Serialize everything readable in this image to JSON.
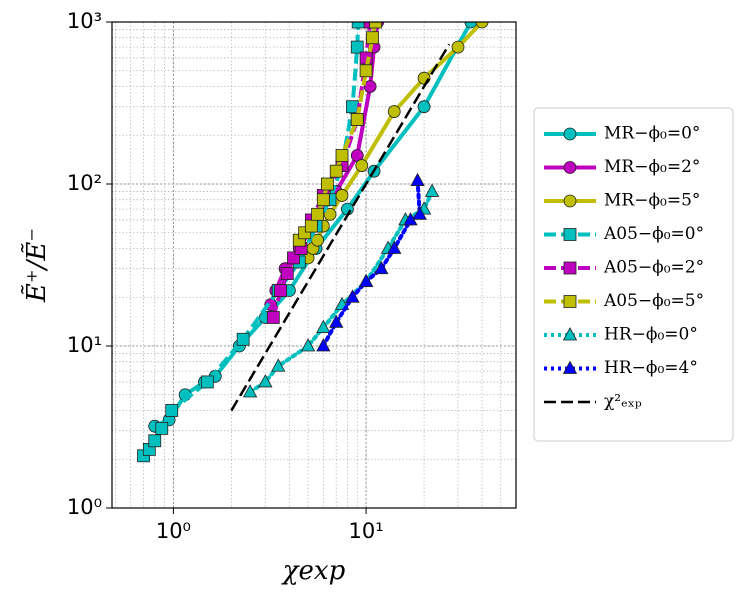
{
  "chart_data": {
    "type": "line",
    "xlabel": "χexp",
    "ylabel": "Ẽ⁺/Ẽ⁻",
    "xscale": "log",
    "yscale": "log",
    "grid": true,
    "legend": "right",
    "xlim": [
      0.48,
      60
    ],
    "ylim": [
      1,
      1000
    ],
    "xticks": [
      {
        "value": 1,
        "label": "10⁰"
      },
      {
        "value": 10,
        "label": "10¹"
      }
    ],
    "yticks": [
      {
        "value": 1,
        "label": "10⁰"
      },
      {
        "value": 10,
        "label": "10¹"
      },
      {
        "value": 100,
        "label": "10²"
      },
      {
        "value": 1000,
        "label": "10³"
      }
    ],
    "series": [
      {
        "name": "MR−ϕ₀=0°",
        "color": "#00bfbf",
        "line": "solid",
        "marker": "o",
        "x": [
          0.8,
          0.95,
          1.15,
          1.45,
          1.65,
          2.2,
          3.0,
          4.0,
          5.5,
          8,
          11,
          20,
          35
        ],
        "values": [
          3.2,
          3.5,
          5,
          6,
          6.5,
          10,
          15,
          22,
          40,
          70,
          120,
          300,
          1000
        ]
      },
      {
        "name": "MR−ϕ₀=2°",
        "color": "#bf00bf",
        "line": "solid",
        "marker": "o",
        "x": [
          3.2,
          3.4,
          3.8,
          4.5,
          5.5,
          7,
          9,
          10.5,
          11,
          11.5
        ],
        "values": [
          18,
          22,
          30,
          40,
          60,
          90,
          150,
          400,
          700,
          1000
        ]
      },
      {
        "name": "MR−ϕ₀=5°",
        "color": "#bfbf00",
        "line": "solid",
        "marker": "o",
        "x": [
          5,
          5.3,
          5.6,
          6,
          6.5,
          7.5,
          9.5,
          14,
          20,
          30,
          40
        ],
        "values": [
          35,
          40,
          45,
          55,
          65,
          85,
          130,
          280,
          450,
          700,
          1000
        ]
      },
      {
        "name": "A05−ϕ₀=0°",
        "color": "#00bfbf",
        "line": "dashed",
        "marker": "s",
        "x": [
          0.7,
          0.75,
          0.8,
          0.87,
          0.98,
          1.5,
          2.3,
          3.5,
          4.5,
          5.5,
          6.5,
          7.5,
          8.5,
          9.0,
          9.1
        ],
        "values": [
          2.1,
          2.3,
          2.6,
          3.1,
          4,
          6,
          11,
          22,
          33,
          55,
          80,
          130,
          300,
          700,
          1000
        ]
      },
      {
        "name": "A05−ϕ₀=2°",
        "color": "#bf00bf",
        "line": "dashed",
        "marker": "s",
        "x": [
          3.3,
          3.6,
          3.9,
          4.2,
          4.6,
          5.2,
          6,
          7.5,
          9,
          10,
          10.5
        ],
        "values": [
          15,
          22,
          28,
          35,
          40,
          60,
          85,
          130,
          250,
          600,
          1000
        ]
      },
      {
        "name": "A05−ϕ₀=5°",
        "color": "#bfbf00",
        "line": "dashed",
        "marker": "s",
        "x": [
          4.5,
          4.8,
          5.2,
          5.6,
          6,
          6.3,
          7,
          7.5,
          9,
          10,
          10.8,
          11.2
        ],
        "values": [
          45,
          50,
          55,
          65,
          80,
          100,
          120,
          150,
          250,
          500,
          800,
          1000
        ]
      },
      {
        "name": "HR−ϕ₀=0°",
        "color": "#00bfbf",
        "line": "dotted",
        "marker": "^",
        "x": [
          2.5,
          3.0,
          3.5,
          5,
          6,
          7.5,
          10,
          13,
          16,
          20,
          22
        ],
        "values": [
          5.2,
          6,
          7.5,
          10,
          13,
          18,
          25,
          40,
          60,
          70,
          90
        ]
      },
      {
        "name": "HR−ϕ₀=4°",
        "color": "#0000ff",
        "line": "dotted",
        "marker": "^",
        "x": [
          6,
          7,
          8.5,
          10,
          12,
          14,
          17,
          19,
          18.5
        ],
        "values": [
          10,
          14,
          20,
          25,
          30,
          40,
          60,
          65,
          105
        ]
      },
      {
        "name": "χ²ₑₓₚ",
        "color": "#000000",
        "line": "dashed",
        "marker": "none",
        "x": [
          2,
          27
        ],
        "values": [
          4,
          729
        ]
      }
    ]
  }
}
